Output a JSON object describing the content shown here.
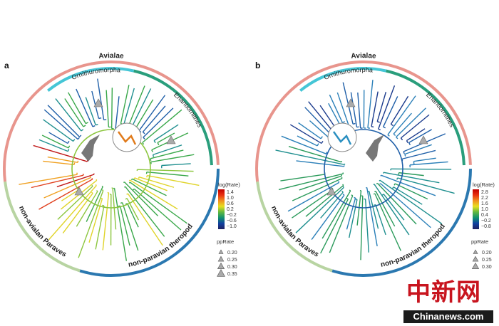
{
  "panels": [
    {
      "label": "a",
      "clades": {
        "avialae": "Avialae",
        "ornithuromorpha": "Ornithuromorpha",
        "enantiornithes": "Enantiornithes",
        "paraves": "non-avialan Paraves",
        "theropod": "non-paravian theropod"
      },
      "legend": {
        "title": "log(Rate)",
        "ticks": [
          "1.4",
          "1.0",
          "0.6",
          "0.2",
          "−0.2",
          "−0.6",
          "−1.0"
        ],
        "pp_title": "ppRate",
        "pp_values": [
          "0.20",
          "0.25",
          "0.30",
          "0.35"
        ]
      },
      "tree_palette": "warm"
    },
    {
      "label": "b",
      "clades": {
        "avialae": "Avialae",
        "ornithuromorpha": "Ornithuromorpha",
        "enantiornithes": "Enantiornithes",
        "paraves": "non-avialan Paraves",
        "theropod": "non-paravian theropod"
      },
      "legend": {
        "title": "log(Rate)",
        "ticks": [
          "2.8",
          "2.2",
          "1.6",
          "1.0",
          "0.4",
          "−0.2",
          "−0.8"
        ],
        "pp_title": "ppRate",
        "pp_values": [
          "0.20",
          "0.25",
          "0.30"
        ]
      },
      "tree_palette": "cool"
    }
  ],
  "colors": {
    "avialae": "#e8958d",
    "ornithuromorpha": "#45c6d6",
    "enantiornithes": "#2a9e7c",
    "paraves": "#b8d4a2",
    "theropod": "#2b78b0"
  },
  "watermark": {
    "cn": "中新网",
    "en": "Chinanews.com"
  }
}
